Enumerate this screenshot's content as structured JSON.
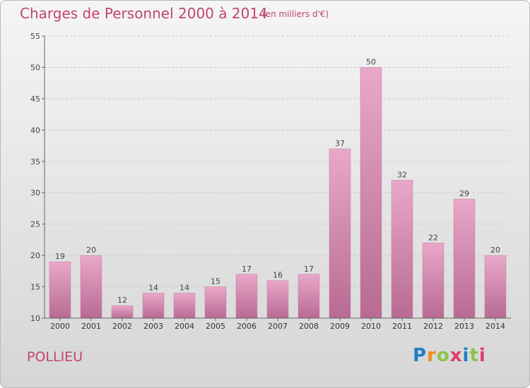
{
  "title": "Charges de Personnel 2000 à 2014",
  "subtitle": "(en milliers d'€)",
  "commune": "POLLIEU",
  "logo": {
    "text": "Proxiti",
    "letters": [
      "P",
      "r",
      "o",
      "x",
      "i",
      "t",
      "i"
    ],
    "colors": [
      "#1e7fc7",
      "#f08a1c",
      "#8bc34a",
      "#e23b6b",
      "#1e7fc7",
      "#8bc34a",
      "#e23b6b"
    ]
  },
  "chart_data": {
    "type": "bar",
    "categories": [
      "2000",
      "2001",
      "2002",
      "2003",
      "2004",
      "2005",
      "2006",
      "2007",
      "2008",
      "2009",
      "2010",
      "2011",
      "2012",
      "2013",
      "2014"
    ],
    "values": [
      19,
      20,
      12,
      14,
      14,
      15,
      17,
      16,
      17,
      37,
      50,
      32,
      22,
      29,
      20
    ],
    "title": "Charges de Personnel 2000 à 2014",
    "subtitle": "(en milliers d'€)",
    "xlabel": "",
    "ylabel": "",
    "ylim": [
      10,
      55
    ],
    "yticks": [
      10,
      15,
      20,
      25,
      30,
      35,
      40,
      45,
      50,
      55
    ],
    "grid": true,
    "bar_color": "#d98bb3"
  }
}
